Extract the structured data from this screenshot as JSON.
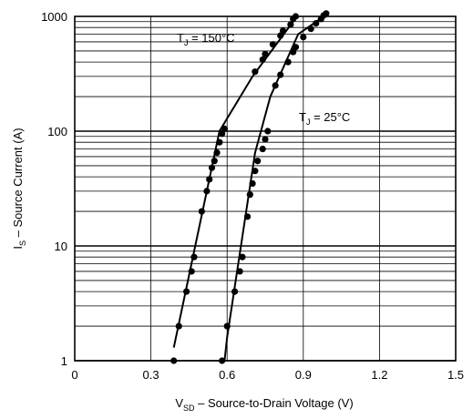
{
  "chart_data": {
    "type": "line",
    "xlabel_parts": {
      "main": "V",
      "sub": "SD",
      "rest": " – Source-to-Drain Voltage (V)"
    },
    "ylabel_parts": {
      "main": "I",
      "sub": "S",
      "rest": " – Source Current (A)"
    },
    "xlim": [
      0,
      1.5
    ],
    "ylim": [
      1,
      1000
    ],
    "y_scale": "log",
    "x_ticks": [
      {
        "value": 0,
        "label": "0"
      },
      {
        "value": 0.3,
        "label": "0.3"
      },
      {
        "value": 0.6,
        "label": "0.6"
      },
      {
        "value": 0.9,
        "label": "0.9"
      },
      {
        "value": 1.2,
        "label": "1.2"
      },
      {
        "value": 1.5,
        "label": "1.5"
      }
    ],
    "y_ticks": [
      {
        "value": 1,
        "label": "1"
      },
      {
        "value": 10,
        "label": "10"
      },
      {
        "value": 100,
        "label": "100"
      },
      {
        "value": 1000,
        "label": "1000"
      }
    ],
    "grid": true,
    "series": [
      {
        "label_parts": {
          "main": "T",
          "sub": "J",
          "rest": " = 150°C"
        },
        "line_points": [
          [
            0.39,
            1.3
          ],
          [
            0.57,
            100
          ],
          [
            0.7,
            300
          ],
          [
            0.875,
            1000
          ]
        ],
        "markers": [
          [
            0.39,
            1
          ],
          [
            0.41,
            2
          ],
          [
            0.44,
            4
          ],
          [
            0.46,
            6
          ],
          [
            0.47,
            8
          ],
          [
            0.5,
            20
          ],
          [
            0.52,
            30
          ],
          [
            0.53,
            38
          ],
          [
            0.54,
            48
          ],
          [
            0.55,
            55
          ],
          [
            0.56,
            65
          ],
          [
            0.57,
            80
          ],
          [
            0.58,
            95
          ],
          [
            0.59,
            105
          ],
          [
            0.71,
            330
          ],
          [
            0.74,
            420
          ],
          [
            0.75,
            470
          ],
          [
            0.78,
            570
          ],
          [
            0.81,
            680
          ],
          [
            0.82,
            750
          ],
          [
            0.85,
            850
          ],
          [
            0.86,
            950
          ],
          [
            0.87,
            1000
          ]
        ]
      },
      {
        "label_parts": {
          "main": "T",
          "sub": "J",
          "rest": " = 25°C"
        },
        "line_points": [
          [
            0.59,
            1.0
          ],
          [
            0.6,
            1.6
          ],
          [
            0.71,
            65
          ],
          [
            0.77,
            200
          ],
          [
            0.88,
            700
          ],
          [
            1.0,
            1070
          ]
        ],
        "markers": [
          [
            0.58,
            1
          ],
          [
            0.6,
            2
          ],
          [
            0.63,
            4
          ],
          [
            0.65,
            6
          ],
          [
            0.66,
            8
          ],
          [
            0.68,
            18
          ],
          [
            0.69,
            28
          ],
          [
            0.7,
            35
          ],
          [
            0.71,
            45
          ],
          [
            0.72,
            55
          ],
          [
            0.74,
            70
          ],
          [
            0.75,
            85
          ],
          [
            0.76,
            100
          ],
          [
            0.79,
            250
          ],
          [
            0.81,
            310
          ],
          [
            0.84,
            400
          ],
          [
            0.86,
            490
          ],
          [
            0.87,
            540
          ],
          [
            0.9,
            660
          ],
          [
            0.93,
            780
          ],
          [
            0.95,
            870
          ],
          [
            0.97,
            950
          ],
          [
            0.98,
            1020
          ],
          [
            0.99,
            1060
          ]
        ]
      }
    ]
  }
}
